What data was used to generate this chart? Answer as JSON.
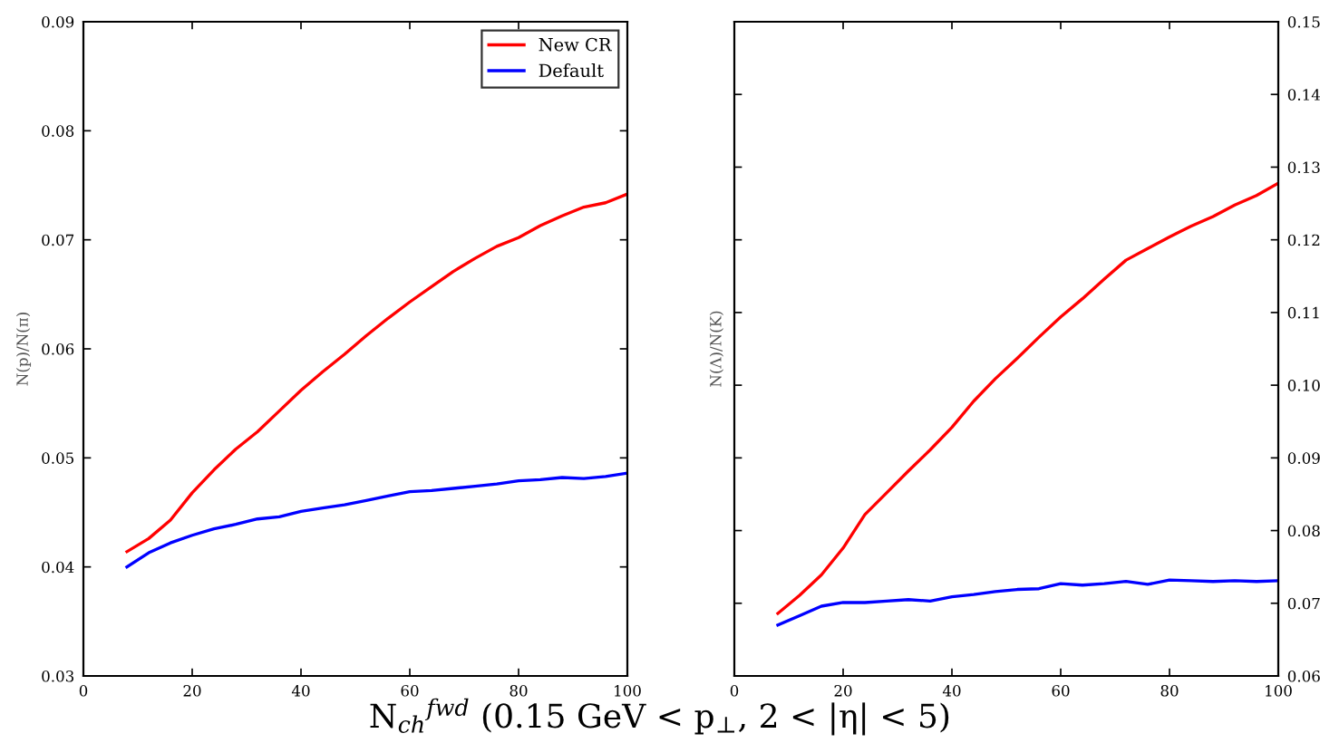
{
  "chart_data": [
    {
      "type": "line",
      "xlabel": "N$_{ch}$$^{fwd}$ (0.15 GeV < p$_{⊥}$, 2 < |η| < 5)",
      "ylabel": "N(p)/N(π)",
      "x": [
        8,
        12,
        16,
        20,
        24,
        28,
        32,
        36,
        40,
        44,
        48,
        52,
        56,
        60,
        64,
        68,
        72,
        76,
        80,
        84,
        88,
        92,
        96,
        100
      ],
      "series": [
        {
          "name": "New CR",
          "color": "#ff0000",
          "values": [
            0.0414,
            0.0426,
            0.0443,
            0.0468,
            0.0489,
            0.0508,
            0.0524,
            0.0543,
            0.0562,
            0.0579,
            0.0595,
            0.0612,
            0.0628,
            0.0643,
            0.0657,
            0.0671,
            0.0683,
            0.0694,
            0.0702,
            0.0713,
            0.0722,
            0.073,
            0.0734,
            0.0742
          ]
        },
        {
          "name": "Default",
          "color": "#0000ff",
          "values": [
            0.04,
            0.0413,
            0.0422,
            0.0429,
            0.0435,
            0.0439,
            0.0444,
            0.0446,
            0.0451,
            0.0454,
            0.0457,
            0.0461,
            0.0465,
            0.0469,
            0.047,
            0.0472,
            0.0474,
            0.0476,
            0.0479,
            0.048,
            0.0482,
            0.0481,
            0.0483,
            0.0486
          ]
        }
      ],
      "xlim": [
        0,
        100
      ],
      "xticks": [
        0,
        20,
        40,
        60,
        80,
        100
      ],
      "ylim": [
        0.03,
        0.09
      ],
      "yticks": [
        0.03,
        0.04,
        0.05,
        0.06,
        0.07,
        0.08,
        0.09
      ],
      "grid": false,
      "legend": "top right",
      "marker": "none",
      "line_style": "solid"
    },
    {
      "type": "line",
      "ylabel": "N(Λ)/N(K)",
      "x": [
        8,
        12,
        16,
        20,
        24,
        28,
        32,
        36,
        40,
        44,
        48,
        52,
        56,
        60,
        64,
        68,
        72,
        76,
        80,
        84,
        88,
        92,
        96,
        100
      ],
      "series": [
        {
          "color": "#ff0000",
          "values": [
            0.0686,
            0.0711,
            0.0739,
            0.0776,
            0.0822,
            0.0852,
            0.0882,
            0.0911,
            0.0942,
            0.0978,
            0.1009,
            0.1037,
            0.1066,
            0.1094,
            0.1119,
            0.1146,
            0.1172,
            0.1188,
            0.1204,
            0.1219,
            0.1232,
            0.1248,
            0.1261,
            0.1278
          ]
        },
        {
          "color": "#0000ff",
          "values": [
            0.067,
            0.0683,
            0.0696,
            0.0701,
            0.0701,
            0.0703,
            0.0705,
            0.0703,
            0.0709,
            0.0712,
            0.0716,
            0.0719,
            0.072,
            0.0727,
            0.0725,
            0.0727,
            0.073,
            0.0726,
            0.0732,
            0.0731,
            0.073,
            0.0731,
            0.073,
            0.0731
          ]
        }
      ],
      "xlim": [
        0,
        100
      ],
      "xticks": [
        0,
        20,
        40,
        60,
        80,
        100
      ],
      "ylim": [
        0.06,
        0.15
      ],
      "yticks": [
        0.06,
        0.07,
        0.08,
        0.09,
        {
          "value": 0.1,
          "label": "0.10"
        },
        0.11,
        0.12,
        0.13,
        0.14,
        0.15
      ],
      "grid": false,
      "legend": false,
      "marker": "none",
      "line_style": "solid"
    }
  ]
}
